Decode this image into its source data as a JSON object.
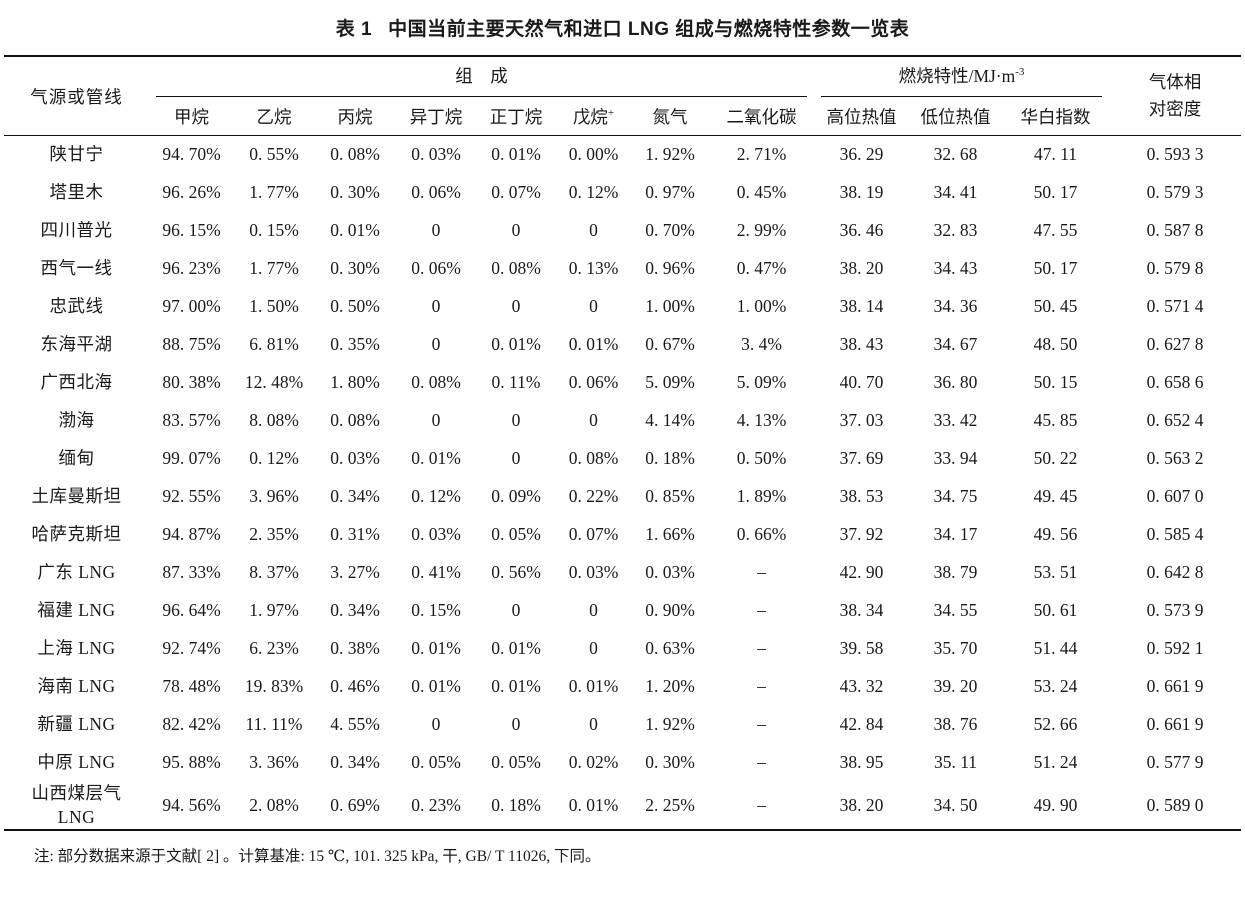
{
  "title": {
    "label": "表 1",
    "text": "中国当前主要天然气和进口 LNG 组成与燃烧特性参数一览表"
  },
  "table": {
    "row_header": "气源或管线",
    "groups": {
      "composition": "组　成",
      "combustion": {
        "text": "燃烧特性/MJ·m",
        "sup": "-3"
      },
      "density": "气体相\n对密度"
    },
    "columns": [
      {
        "text": "甲烷"
      },
      {
        "text": "乙烷"
      },
      {
        "text": "丙烷"
      },
      {
        "text": "异丁烷"
      },
      {
        "text": "正丁烷"
      },
      {
        "text": "戊烷",
        "sup": "+"
      },
      {
        "text": "氮气"
      },
      {
        "text": "二氧化碳"
      },
      {
        "text": "高位热值"
      },
      {
        "text": "低位热值"
      },
      {
        "text": "华白指数"
      }
    ],
    "rows": [
      {
        "name": "陕甘宁",
        "values": [
          "94. 70%",
          "0. 55%",
          "0. 08%",
          "0. 03%",
          "0. 01%",
          "0. 00%",
          "1. 92%",
          "2. 71%",
          "36. 29",
          "32. 68",
          "47. 11",
          "0. 593 3"
        ]
      },
      {
        "name": "塔里木",
        "values": [
          "96. 26%",
          "1. 77%",
          "0. 30%",
          "0. 06%",
          "0. 07%",
          "0. 12%",
          "0. 97%",
          "0. 45%",
          "38. 19",
          "34. 41",
          "50. 17",
          "0. 579 3"
        ]
      },
      {
        "name": "四川普光",
        "values": [
          "96. 15%",
          "0. 15%",
          "0. 01%",
          "0",
          "0",
          "0",
          "0. 70%",
          "2. 99%",
          "36. 46",
          "32. 83",
          "47. 55",
          "0. 587 8"
        ]
      },
      {
        "name": "西气一线",
        "values": [
          "96. 23%",
          "1. 77%",
          "0. 30%",
          "0. 06%",
          "0. 08%",
          "0. 13%",
          "0. 96%",
          "0. 47%",
          "38. 20",
          "34. 43",
          "50. 17",
          "0. 579 8"
        ]
      },
      {
        "name": "忠武线",
        "values": [
          "97. 00%",
          "1. 50%",
          "0. 50%",
          "0",
          "0",
          "0",
          "1. 00%",
          "1. 00%",
          "38. 14",
          "34. 36",
          "50. 45",
          "0. 571 4"
        ]
      },
      {
        "name": "东海平湖",
        "values": [
          "88. 75%",
          "6. 81%",
          "0. 35%",
          "0",
          "0. 01%",
          "0. 01%",
          "0. 67%",
          "3. 4%",
          "38. 43",
          "34. 67",
          "48. 50",
          "0. 627 8"
        ]
      },
      {
        "name": "广西北海",
        "values": [
          "80. 38%",
          "12. 48%",
          "1. 80%",
          "0. 08%",
          "0. 11%",
          "0. 06%",
          "5. 09%",
          "5. 09%",
          "40. 70",
          "36. 80",
          "50. 15",
          "0. 658 6"
        ]
      },
      {
        "name": "渤海",
        "values": [
          "83. 57%",
          "8. 08%",
          "0. 08%",
          "0",
          "0",
          "0",
          "4. 14%",
          "4. 13%",
          "37. 03",
          "33. 42",
          "45. 85",
          "0. 652 4"
        ]
      },
      {
        "name": "缅甸",
        "values": [
          "99. 07%",
          "0. 12%",
          "0. 03%",
          "0. 01%",
          "0",
          "0. 08%",
          "0. 18%",
          "0. 50%",
          "37. 69",
          "33. 94",
          "50. 22",
          "0. 563 2"
        ]
      },
      {
        "name": "土库曼斯坦",
        "values": [
          "92. 55%",
          "3. 96%",
          "0. 34%",
          "0. 12%",
          "0. 09%",
          "0. 22%",
          "0. 85%",
          "1. 89%",
          "38. 53",
          "34. 75",
          "49. 45",
          "0. 607 0"
        ]
      },
      {
        "name": "哈萨克斯坦",
        "values": [
          "94. 87%",
          "2. 35%",
          "0. 31%",
          "0. 03%",
          "0. 05%",
          "0. 07%",
          "1. 66%",
          "0. 66%",
          "37. 92",
          "34. 17",
          "49. 56",
          "0. 585 4"
        ]
      },
      {
        "name": "广东 LNG",
        "values": [
          "87. 33%",
          "8. 37%",
          "3. 27%",
          "0. 41%",
          "0. 56%",
          "0. 03%",
          "0. 03%",
          "–",
          "42. 90",
          "38. 79",
          "53. 51",
          "0. 642 8"
        ]
      },
      {
        "name": "福建 LNG",
        "values": [
          "96. 64%",
          "1. 97%",
          "0. 34%",
          "0. 15%",
          "0",
          "0",
          "0. 90%",
          "–",
          "38. 34",
          "34. 55",
          "50. 61",
          "0. 573 9"
        ]
      },
      {
        "name": "上海 LNG",
        "values": [
          "92. 74%",
          "6. 23%",
          "0. 38%",
          "0. 01%",
          "0. 01%",
          "0",
          "0. 63%",
          "–",
          "39. 58",
          "35. 70",
          "51. 44",
          "0. 592 1"
        ]
      },
      {
        "name": "海南 LNG",
        "values": [
          "78. 48%",
          "19. 83%",
          "0. 46%",
          "0. 01%",
          "0. 01%",
          "0. 01%",
          "1. 20%",
          "–",
          "43. 32",
          "39. 20",
          "53. 24",
          "0. 661 9"
        ]
      },
      {
        "name": "新疆 LNG",
        "values": [
          "82. 42%",
          "11. 11%",
          "4. 55%",
          "0",
          "0",
          "0",
          "1. 92%",
          "–",
          "42. 84",
          "38. 76",
          "52. 66",
          "0. 661 9"
        ]
      },
      {
        "name": "中原 LNG",
        "values": [
          "95. 88%",
          "3. 36%",
          "0. 34%",
          "0. 05%",
          "0. 05%",
          "0. 02%",
          "0. 30%",
          "–",
          "38. 95",
          "35. 11",
          "51. 24",
          "0. 577 9"
        ]
      },
      {
        "name": "山西煤层气\nLNG",
        "values": [
          "94. 56%",
          "2. 08%",
          "0. 69%",
          "0. 23%",
          "0. 18%",
          "0. 01%",
          "2. 25%",
          "–",
          "38. 20",
          "34. 50",
          "49. 90",
          "0. 589 0"
        ]
      }
    ]
  },
  "note": "注: 部分数据来源于文献[ 2] 。计算基准: 15 ℃, 101. 325 kPa, 干, GB/ T 11026, 下同。"
}
